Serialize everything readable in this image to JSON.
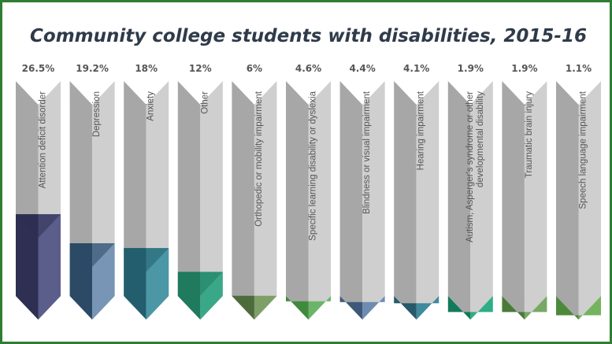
{
  "chart_data": {
    "type": "bar",
    "title": "Community college students with disabilities, 2015-16",
    "xlabel": "",
    "ylabel": "",
    "categories": [
      "Attention deficit disorder",
      "Depression",
      "Anxiety",
      "Other",
      "Orthopedic or mobility impairment",
      "Specific learning disability or dyslexia",
      "Blindness or visual impairment",
      "Hearing impairment",
      [
        "Autism, Asperger's syndrome or other",
        "developmental disability"
      ],
      "Traumatic brain injury",
      "Speech language impairment"
    ],
    "values": [
      26.5,
      19.2,
      18,
      12,
      6,
      4.6,
      4.4,
      4.1,
      1.9,
      1.9,
      1.1
    ],
    "value_labels": [
      "26.5%",
      "19.2%",
      "18%",
      "12%",
      "6%",
      "4.6%",
      "4.4%",
      "4.1%",
      "1.9%",
      "1.9%",
      "1.1%"
    ],
    "ylim": [
      0,
      60
    ],
    "colors": [
      [
        "#2e2f52",
        "#5b5e8a"
      ],
      [
        "#2c4a66",
        "#7895b5"
      ],
      [
        "#235e6e",
        "#4b97a6"
      ],
      [
        "#1f7a5e",
        "#3aa888"
      ],
      [
        "#4e6b3d",
        "#7f9f68"
      ],
      [
        "#3f8a3c",
        "#6ab56a"
      ],
      [
        "#3e5878",
        "#6d8cb0"
      ],
      [
        "#26596a",
        "#3f8a9c"
      ],
      [
        "#127a5a",
        "#2eae86"
      ],
      [
        "#4a7a3a",
        "#77a865"
      ],
      [
        "#4c8a3b",
        "#76b35e"
      ]
    ],
    "track_colors": [
      "#a7a7a7",
      "#cfcfcf"
    ]
  }
}
